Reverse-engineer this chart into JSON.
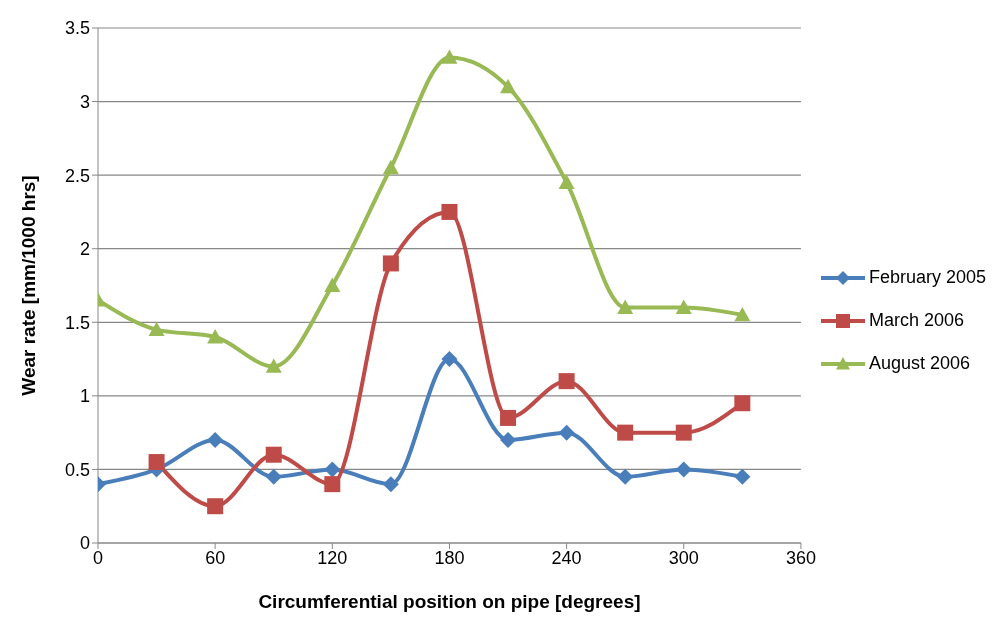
{
  "chart_data": {
    "type": "line",
    "xlabel": "Circumferential position on pipe [degrees]",
    "ylabel": "Wear rate [mm/1000 hrs]",
    "x": [
      0,
      30,
      60,
      90,
      120,
      150,
      180,
      210,
      240,
      270,
      300,
      330
    ],
    "series": [
      {
        "name": "February 2005",
        "color": "#4a7ebb",
        "marker": "diamond",
        "values": [
          0.4,
          0.5,
          0.7,
          0.45,
          0.5,
          0.4,
          1.25,
          0.7,
          0.75,
          0.45,
          0.5,
          0.45
        ]
      },
      {
        "name": "March 2006",
        "color": "#be4b48",
        "marker": "square",
        "values": [
          null,
          0.55,
          0.25,
          0.6,
          0.4,
          1.9,
          2.25,
          0.85,
          1.1,
          0.75,
          0.75,
          0.95
        ]
      },
      {
        "name": "August 2006",
        "color": "#98b954",
        "marker": "triangle",
        "values": [
          1.65,
          1.45,
          1.4,
          1.2,
          1.75,
          2.55,
          3.3,
          3.1,
          2.45,
          1.6,
          1.6,
          1.55
        ]
      }
    ],
    "xlim": [
      0,
      360
    ],
    "xticks": [
      0,
      60,
      120,
      180,
      240,
      300,
      360
    ],
    "ylim": [
      0,
      3.5
    ],
    "yticks": [
      0,
      0.5,
      1,
      1.5,
      2,
      2.5,
      3,
      3.5
    ],
    "grid": "y",
    "legend": "right",
    "line_style": "solid"
  }
}
